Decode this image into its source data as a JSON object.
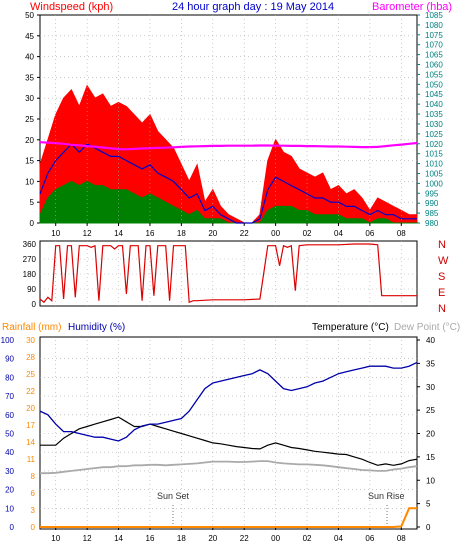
{
  "header": {
    "windspeed_label": "Windspeed (kph)",
    "title": "24 hour graph day : 19 May 2014",
    "barometer_label": "Barometer (hba)"
  },
  "mid": {
    "compass_labels": [
      "N",
      "W",
      "S",
      "E",
      "N"
    ]
  },
  "bottom": {
    "rainfall_label": "Rainfall (mm)",
    "humidity_label": "Humidity (%)",
    "temperature_label": "Temperature (°C)",
    "dewpoint_label": "Dew Point (°C)",
    "sunset_label": "Sun Set",
    "sunrise_label": "Sun Rise"
  },
  "colors": {
    "gust": "#ff0000",
    "average": "#0000cc",
    "lull": "#008000",
    "barometer": "#ff00ff",
    "direction": "#dd0000",
    "humidity": "#0000aa",
    "temperature": "#000000",
    "dewpoint": "#aaaaaa",
    "rainfall": "#ff8800",
    "axis_teal": "#008080"
  },
  "chart_data": [
    {
      "type": "line",
      "title": "24 hour graph day : 19 May 2014",
      "x_ticks": [
        "10",
        "12",
        "14",
        "16",
        "18",
        "20",
        "22",
        "00",
        "02",
        "04",
        "06",
        "08"
      ],
      "ylabel": "Windspeed (kph)",
      "ylim": [
        0,
        50
      ],
      "yticks": [
        0,
        5,
        10,
        15,
        20,
        25,
        30,
        35,
        40,
        45,
        50
      ],
      "y2label": "Barometer (hba)",
      "y2lim": [
        980,
        1085
      ],
      "y2ticks": [
        980,
        985,
        990,
        995,
        1000,
        1005,
        1010,
        1015,
        1020,
        1025,
        1030,
        1035,
        1040,
        1045,
        1050,
        1055,
        1060,
        1065,
        1070,
        1075,
        1080,
        1085
      ],
      "x": [
        9,
        9.5,
        10,
        10.5,
        11,
        11.5,
        12,
        12.5,
        13,
        13.5,
        14,
        14.5,
        15,
        15.5,
        16,
        16.5,
        17,
        17.5,
        18,
        18.5,
        19,
        19.5,
        20,
        20.5,
        21,
        21.5,
        22,
        22.5,
        23,
        23.5,
        24,
        24.5,
        25,
        25.5,
        26,
        26.5,
        27,
        27.5,
        28,
        28.5,
        29,
        29.5,
        30,
        30.5,
        31,
        31.5,
        32,
        32.5,
        33
      ],
      "series": [
        {
          "name": "Windspeed (kph)",
          "values": [
            14,
            20,
            26,
            30,
            32,
            28,
            33,
            30,
            31,
            28,
            29,
            28,
            26,
            24,
            26,
            22,
            20,
            18,
            14,
            10,
            14,
            5,
            8,
            4,
            2,
            1,
            0,
            0,
            2,
            15,
            20,
            17,
            16,
            13,
            12,
            11,
            12,
            8,
            9,
            7,
            8,
            6,
            3,
            6,
            5,
            4,
            3,
            2,
            2
          ]
        },
        {
          "name": "average",
          "values": [
            7,
            12,
            15,
            17,
            19,
            17,
            19,
            18,
            17,
            16,
            16,
            15,
            14,
            13,
            14,
            12,
            11,
            10,
            8,
            6,
            7,
            3,
            4,
            2,
            1,
            0,
            0,
            0,
            1,
            8,
            11,
            10,
            9,
            8,
            7,
            6,
            6,
            5,
            5,
            4,
            4,
            3,
            2,
            3,
            2,
            2,
            1,
            1,
            1
          ]
        },
        {
          "name": "lull",
          "values": [
            2,
            6,
            8,
            9,
            10,
            9,
            10,
            9,
            9,
            8,
            8,
            8,
            7,
            6,
            7,
            6,
            5,
            4,
            3,
            2,
            3,
            1,
            1,
            1,
            0,
            0,
            0,
            0,
            0,
            3,
            4,
            4,
            4,
            3,
            3,
            2,
            2,
            2,
            2,
            1,
            1,
            1,
            0,
            1,
            1,
            0,
            0,
            0,
            0
          ]
        },
        {
          "name": "Barometer (hba)",
          "values": [
            1020.8,
            1020.6,
            1020.3,
            1020,
            1019.5,
            1019.2,
            1018.8,
            1018.5,
            1018.1,
            1017.7,
            1017.3,
            1017.2,
            1017.4,
            1017.6,
            1017.8,
            1017.9,
            1018,
            1018.2,
            1018.4,
            1018.6,
            1018.7,
            1018.8,
            1018.9,
            1018.9,
            1019,
            1019,
            1019,
            1019,
            1019.1,
            1019.1,
            1019,
            1019,
            1018.9,
            1018.9,
            1018.8,
            1018.8,
            1018.7,
            1018.6,
            1018.6,
            1018.5,
            1018.4,
            1018.3,
            1018.3,
            1018.4,
            1018.8,
            1019.2,
            1019.6,
            1020,
            1020.4
          ]
        }
      ]
    },
    {
      "type": "line",
      "ytick_labels": [
        "0",
        "90",
        "180",
        "270",
        "360"
      ],
      "ylim": [
        0,
        360
      ],
      "y2_labels": [
        "N",
        "W",
        "S",
        "E",
        "N"
      ],
      "x": [
        9,
        9.25,
        9.5,
        9.75,
        10,
        10.25,
        10.5,
        10.75,
        11,
        11.25,
        11.5,
        11.75,
        12,
        12.25,
        12.5,
        12.75,
        13,
        13.25,
        13.5,
        13.75,
        14,
        14.25,
        14.5,
        14.75,
        15,
        15.25,
        15.5,
        15.75,
        16,
        16.25,
        16.5,
        16.75,
        17,
        17.25,
        17.5,
        17.75,
        18,
        18.25,
        18.5,
        18.75,
        19,
        20,
        21,
        22,
        23,
        23.5,
        24,
        24.25,
        24.5,
        24.75,
        25,
        25.25,
        25.5,
        26,
        27,
        28,
        29,
        30,
        30.5,
        30.75,
        31,
        32,
        33
      ],
      "values": [
        30,
        10,
        40,
        20,
        350,
        350,
        30,
        350,
        350,
        40,
        350,
        350,
        350,
        340,
        350,
        20,
        350,
        350,
        350,
        330,
        350,
        350,
        60,
        350,
        350,
        350,
        20,
        350,
        350,
        50,
        350,
        350,
        350,
        20,
        350,
        350,
        350,
        350,
        10,
        20,
        20,
        25,
        25,
        25,
        30,
        350,
        350,
        230,
        350,
        340,
        350,
        80,
        350,
        355,
        355,
        355,
        360,
        360,
        355,
        50,
        50,
        50,
        50
      ]
    },
    {
      "type": "line",
      "ylabel": "Humidity (%)",
      "ylim": [
        0,
        100
      ],
      "yticks": [
        0,
        10,
        20,
        30,
        40,
        50,
        60,
        70,
        80,
        90,
        100
      ],
      "y_rain_ticks": [
        0,
        3,
        6,
        8,
        11,
        14,
        17,
        20,
        22,
        25,
        28,
        30
      ],
      "y2label": "Temperature (°C)",
      "y2lim": [
        0,
        40
      ],
      "y2ticks": [
        0,
        5,
        10,
        15,
        20,
        25,
        30,
        35,
        40
      ],
      "annotations": [
        "Sun Set",
        "Sun Rise"
      ],
      "x": [
        9,
        9.5,
        10,
        10.5,
        11,
        11.5,
        12,
        12.5,
        13,
        13.5,
        14,
        14.5,
        15,
        15.5,
        16,
        16.5,
        17,
        17.5,
        18,
        18.5,
        19,
        19.5,
        20,
        20.5,
        21,
        21.5,
        22,
        22.5,
        23,
        23.5,
        24,
        24.5,
        25,
        25.5,
        26,
        26.5,
        27,
        27.5,
        28,
        28.5,
        29,
        29.5,
        30,
        30.5,
        31,
        31.5,
        32,
        32.5,
        33
      ],
      "series": [
        {
          "name": "Humidity (%)",
          "values": [
            62,
            60,
            55,
            51,
            51,
            50,
            49,
            48,
            48,
            47,
            46,
            48,
            52,
            54,
            55,
            55,
            56,
            57,
            58,
            62,
            68,
            74,
            77,
            78,
            79,
            80,
            81,
            82,
            84,
            82,
            78,
            74,
            73,
            74,
            75,
            77,
            78,
            80,
            82,
            83,
            84,
            85,
            86,
            86,
            86,
            85,
            85,
            86,
            88
          ]
        },
        {
          "name": "Temperature (°C)",
          "values": [
            17.5,
            17.5,
            17.5,
            19,
            20,
            21,
            21.5,
            22,
            22.5,
            23,
            23.5,
            22.5,
            21.5,
            21.5,
            22,
            21.5,
            21,
            20.5,
            20,
            19.5,
            19,
            18.5,
            18,
            17.8,
            17.5,
            17.2,
            17,
            16.8,
            16.7,
            17.5,
            18,
            17.5,
            17,
            16.8,
            16.5,
            16.2,
            16,
            15.8,
            15.6,
            15.5,
            15,
            14.5,
            13.8,
            13.2,
            13.5,
            13.2,
            13.5,
            14.2,
            14.5
          ]
        },
        {
          "name": "Dew Point (°C)",
          "values": [
            11.5,
            11.5,
            11.6,
            11.8,
            12,
            12.2,
            12.4,
            12.6,
            12.8,
            12.8,
            13,
            13,
            13.2,
            13.2,
            13.3,
            13.3,
            13.2,
            13.3,
            13.4,
            13.5,
            13.6,
            13.8,
            14,
            14,
            14,
            13.9,
            13.9,
            14,
            14.1,
            14.1,
            13.8,
            13.6,
            13.5,
            13.4,
            13.4,
            13.3,
            13.2,
            13,
            12.8,
            12.6,
            12.4,
            12.2,
            12.1,
            12,
            12,
            12.3,
            12.5,
            12.8,
            13
          ]
        },
        {
          "name": "Rainfall (mm)",
          "values": [
            0,
            0,
            0,
            0,
            0,
            0,
            0,
            0,
            0,
            0,
            0,
            0,
            0,
            0,
            0,
            0,
            0,
            0,
            0,
            0,
            0,
            0,
            0,
            0,
            0,
            0,
            0,
            0,
            0,
            0,
            0,
            0,
            0,
            0,
            0,
            0,
            0,
            0,
            0,
            0,
            0,
            0,
            0,
            0,
            0,
            0,
            0.1,
            3,
            3
          ]
        }
      ]
    }
  ]
}
